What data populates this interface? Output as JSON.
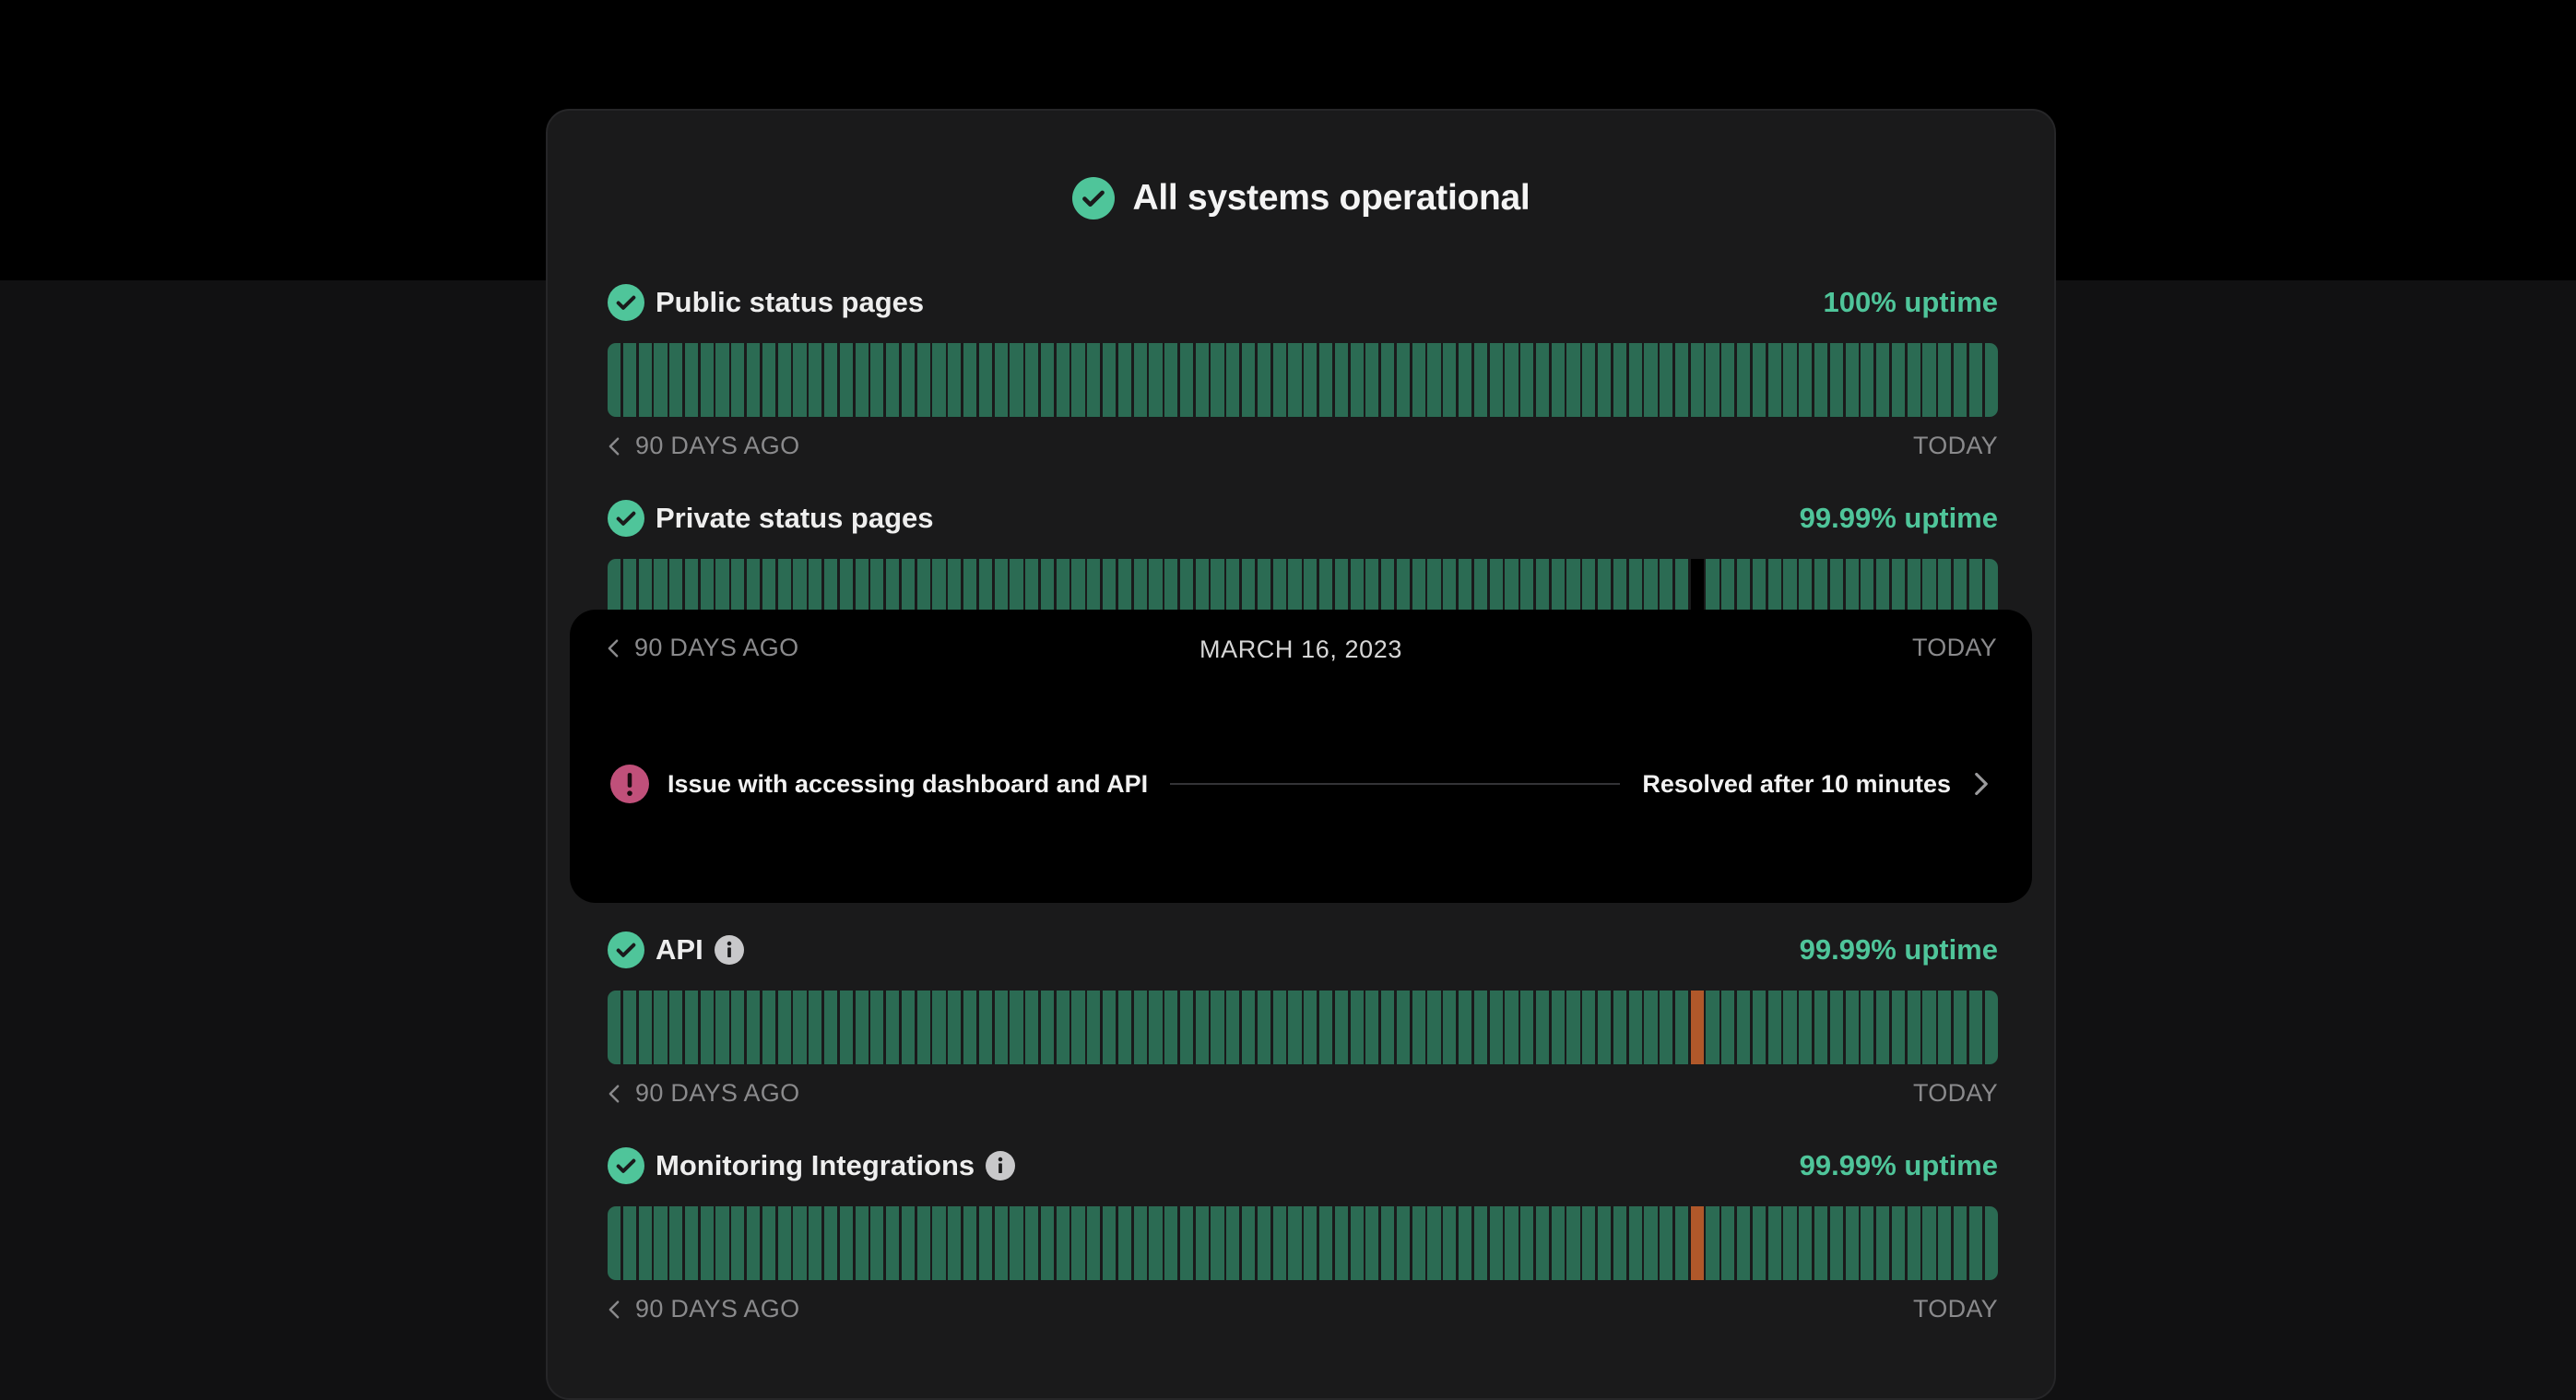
{
  "overall": {
    "title": "All systems operational",
    "status_icon": "check-circle-icon"
  },
  "colors": {
    "operational": "#4fc59a",
    "bar_ok": "#2b6b53",
    "bar_partial": "#b0582a",
    "incident": "#c0507a"
  },
  "components": [
    {
      "name": "Public status pages",
      "uptime": "100% uptime",
      "has_info": false,
      "axis_left": "90 DAYS AGO",
      "axis_right": "TODAY",
      "days": 90,
      "partial_days": [],
      "no_data_days": []
    },
    {
      "name": "Private status pages",
      "uptime": "99.99% uptime",
      "has_info": false,
      "axis_left": "90 DAYS AGO",
      "axis_right": "TODAY",
      "days": 90,
      "partial_days": [],
      "no_data_days": [
        70
      ]
    },
    {
      "name": "API",
      "uptime": "99.99% uptime",
      "has_info": true,
      "axis_left": "90 DAYS AGO",
      "axis_right": "TODAY",
      "days": 90,
      "partial_days": [
        70
      ],
      "no_data_days": []
    },
    {
      "name": "Monitoring Integrations",
      "uptime": "99.99% uptime",
      "has_info": true,
      "axis_left": "90 DAYS AGO",
      "axis_right": "TODAY",
      "days": 90,
      "partial_days": [
        70
      ],
      "no_data_days": []
    }
  ],
  "popover": {
    "axis_left": "90 DAYS AGO",
    "axis_right": "TODAY",
    "date": "MARCH 16, 2023",
    "incident": {
      "title": "Issue with accessing dashboard and API",
      "status": "Resolved after 10 minutes",
      "icon": "exclamation-circle-icon"
    }
  }
}
